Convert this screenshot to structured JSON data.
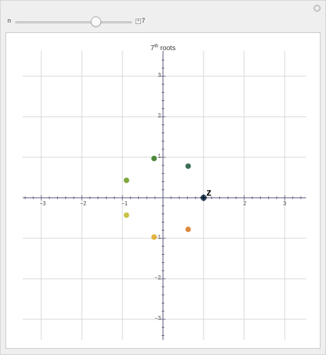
{
  "controls": {
    "slider_label": "n",
    "slider_value": "7",
    "plus_symbol": "+"
  },
  "plot": {
    "title_main": "7",
    "title_sup": "th",
    "title_rest": " roots",
    "x_ticks": [
      "−3",
      "−2",
      "−1",
      "2",
      "3"
    ],
    "y_ticks": [
      "3",
      "2",
      "1",
      "−1",
      "−2",
      "−3"
    ],
    "point_label": "z",
    "axis_color": "#4a4a73",
    "grid_color": "#d6d6d6"
  },
  "chart_data": {
    "type": "scatter",
    "title": "7th roots",
    "xlim": [
      -3.5,
      3.5
    ],
    "ylim": [
      -3.5,
      3.5
    ],
    "grid": true,
    "points": [
      {
        "x": 1.0,
        "y": 0.0,
        "color": "#2f4f6f"
      },
      {
        "x": 0.62,
        "y": 0.78,
        "color": "#3d6e56"
      },
      {
        "x": -0.22,
        "y": 0.97,
        "color": "#4f8a3c"
      },
      {
        "x": -0.9,
        "y": 0.43,
        "color": "#7fa83d"
      },
      {
        "x": -0.9,
        "y": -0.43,
        "color": "#c8c248"
      },
      {
        "x": -0.22,
        "y": -0.97,
        "color": "#e3b33d"
      },
      {
        "x": 0.62,
        "y": -0.78,
        "color": "#de8a3f"
      }
    ],
    "point_label": "z"
  }
}
